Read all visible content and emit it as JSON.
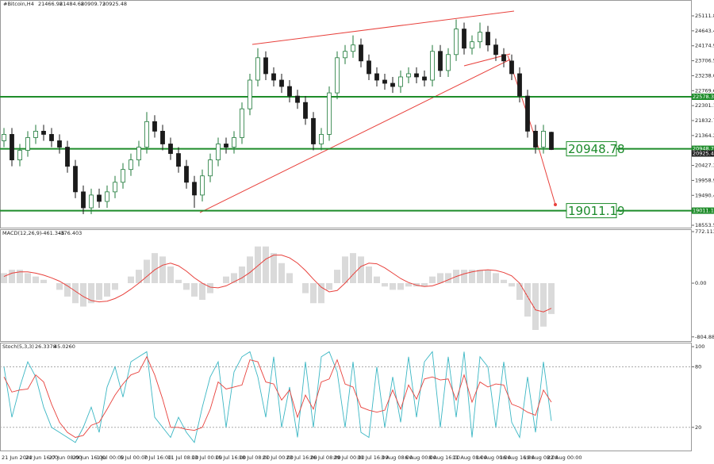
{
  "chart_data": [
    {
      "type": "candlestick",
      "symbol": "#Bitcoin,H4",
      "bull_color": "#1f7a3a",
      "bear_color": "#1a1a1a",
      "level_color": "#1e8c2a",
      "trend_color": "#e8413c",
      "open": [
        21200,
        21400,
        20600,
        20900,
        21300,
        21500,
        21400,
        21200,
        21000,
        20400,
        19600,
        19100,
        19500,
        19300,
        19600,
        19900,
        20300,
        20600,
        21000,
        21800,
        21500,
        21100,
        20800,
        20400,
        19900,
        19500,
        20100,
        20600,
        21100,
        21000,
        21300,
        22200,
        23100,
        23800,
        23300,
        23100,
        22900,
        22600,
        22400,
        21900,
        21100,
        21400,
        22700,
        23800,
        24000,
        24200,
        23700,
        23300,
        23100,
        23000,
        22900,
        23200,
        23300,
        23200,
        23100,
        24000,
        23400,
        23900,
        24700,
        24100,
        24300,
        24600,
        24200,
        23900,
        23700,
        23300,
        22600,
        21500,
        21000,
        21466.98
      ],
      "high": [
        21600,
        21600,
        21100,
        21500,
        21700,
        21700,
        21600,
        21400,
        21200,
        20600,
        19800,
        19700,
        19700,
        19800,
        20100,
        20500,
        20800,
        21200,
        22100,
        22000,
        21700,
        21300,
        21000,
        20600,
        20100,
        20300,
        20800,
        21300,
        21300,
        21500,
        22400,
        23300,
        24100,
        24000,
        23500,
        23300,
        23100,
        22800,
        22600,
        22100,
        21600,
        22900,
        24000,
        24200,
        24500,
        24400,
        23900,
        23500,
        23300,
        23200,
        23400,
        23500,
        23500,
        23400,
        24200,
        24200,
        24100,
        25000,
        24900,
        24500,
        24900,
        24800,
        24400,
        24100,
        23900,
        23500,
        22800,
        21700,
        21700,
        21484.68
      ],
      "low": [
        21000,
        20400,
        20400,
        20700,
        21100,
        21200,
        21000,
        20800,
        20200,
        19400,
        18900,
        18900,
        19100,
        19100,
        19400,
        19700,
        20100,
        20400,
        20800,
        21300,
        20900,
        20600,
        20200,
        19700,
        19100,
        19300,
        19900,
        20400,
        20800,
        20800,
        21100,
        22000,
        22900,
        23100,
        22900,
        22700,
        22400,
        22200,
        21700,
        20900,
        20900,
        21200,
        22500,
        23600,
        23800,
        23500,
        23100,
        22900,
        22800,
        22700,
        22700,
        23000,
        23000,
        22900,
        22900,
        23200,
        23200,
        23700,
        23900,
        23900,
        24100,
        24000,
        23700,
        23500,
        23100,
        22400,
        21300,
        20800,
        20800,
        20909.73
      ],
      "close": [
        21400,
        20600,
        20900,
        21300,
        21500,
        21400,
        21200,
        21000,
        20400,
        19600,
        19100,
        19500,
        19300,
        19600,
        19900,
        20300,
        20600,
        21000,
        21800,
        21500,
        21100,
        20800,
        20400,
        19900,
        19500,
        20100,
        20600,
        21100,
        21000,
        21300,
        22200,
        23100,
        23800,
        23300,
        23100,
        22900,
        22600,
        22400,
        21900,
        21100,
        21400,
        22700,
        23800,
        24000,
        24200,
        23700,
        23300,
        23100,
        23000,
        22900,
        23200,
        23300,
        23200,
        23100,
        24000,
        23400,
        23900,
        24700,
        24100,
        24300,
        24600,
        24200,
        23900,
        23700,
        23300,
        22600,
        21500,
        21000,
        21500,
        20925.48
      ],
      "ylim": [
        18479,
        25609
      ],
      "yticks": [
        25111.88,
        24643.43,
        24174.98,
        23706.53,
        23238.08,
        22769.63,
        22301.18,
        21832.73,
        21364.28,
        20895.83,
        20427.38,
        19958.93,
        19490.48,
        19022.03,
        18553.58
      ],
      "levels": [
        22578.33,
        20948.78,
        19011.19
      ],
      "callouts": [
        20948.78,
        19011.19
      ],
      "x_labels": [
        "21 Jun 2022",
        "24 Jun 16:00",
        "27 Jun 08:00",
        "29 Jun 16:00",
        "1 Jul 00:00",
        "5 Jul 00:00",
        "7 Jul 16:00",
        "11 Jul 08:00",
        "13 Jul 00:00",
        "15 Jul 16:00",
        "18 Jul 08:00",
        "21 Jul 00:00",
        "23 Jul 16:00",
        "26 Jul 08:00",
        "29 Jul 00:00",
        "31 Jul 16:00",
        "3 Aug 08:00",
        "6 Aug 00:00",
        "8 Aug 16:00",
        "11 Aug 08:00",
        "14 Aug 00:00",
        "16 Aug 16:00",
        "19 Aug 08:00",
        "22 Aug 00:00"
      ]
    },
    {
      "type": "macd",
      "title": "MACD(12,26,9)",
      "series": [
        {
          "name": "histogram",
          "color": "#b4b4b4",
          "values": [
            150,
            200,
            200,
            150,
            100,
            50,
            0,
            -100,
            -200,
            -300,
            -350,
            -300,
            -250,
            -200,
            -100,
            0,
            100,
            200,
            350,
            450,
            400,
            250,
            50,
            -100,
            -200,
            -250,
            -150,
            0,
            100,
            150,
            250,
            400,
            550,
            550,
            450,
            300,
            150,
            0,
            -150,
            -300,
            -300,
            -100,
            200,
            400,
            450,
            400,
            250,
            100,
            -50,
            -100,
            -100,
            -50,
            -50,
            -50,
            100,
            150,
            150,
            200,
            200,
            200,
            200,
            200,
            150,
            50,
            -50,
            -250,
            -500,
            -700,
            -650,
            -461.346
          ]
        },
        {
          "name": "signal",
          "color": "#e8413c",
          "values": [
            100,
            150,
            170,
            170,
            150,
            120,
            80,
            30,
            -40,
            -120,
            -200,
            -260,
            -280,
            -270,
            -230,
            -170,
            -90,
            0,
            100,
            200,
            270,
            300,
            260,
            180,
            80,
            0,
            -60,
            -70,
            -40,
            20,
            80,
            160,
            260,
            360,
            420,
            420,
            380,
            300,
            190,
            60,
            -60,
            -130,
            -110,
            0,
            130,
            250,
            300,
            290,
            230,
            150,
            70,
            10,
            -30,
            -50,
            -40,
            0,
            50,
            100,
            140,
            170,
            190,
            200,
            190,
            160,
            110,
            0,
            -200,
            -400,
            -430,
            -376.403
          ]
        }
      ],
      "ylim": [
        -867,
        808
      ],
      "yticks": [
        772.113,
        {
          "value": 0,
          "label": "0.00"
        },
        -804.881
      ]
    },
    {
      "type": "stochastic",
      "title": "Stoch(5,3,3)",
      "series": [
        {
          "name": "main",
          "color": "#3cb7c4",
          "values": [
            80,
            30,
            60,
            85,
            70,
            40,
            20,
            15,
            10,
            5,
            20,
            40,
            15,
            60,
            80,
            50,
            85,
            90,
            95,
            30,
            20,
            10,
            30,
            15,
            5,
            40,
            70,
            85,
            20,
            75,
            90,
            95,
            70,
            30,
            90,
            20,
            60,
            10,
            85,
            20,
            90,
            95,
            75,
            20,
            85,
            15,
            10,
            80,
            20,
            70,
            25,
            90,
            30,
            85,
            95,
            20,
            90,
            30,
            95,
            10,
            90,
            80,
            20,
            85,
            25,
            10,
            70,
            15,
            85,
            26.3378
          ]
        },
        {
          "name": "signal",
          "color": "#e8413c",
          "values": [
            70,
            55,
            57,
            58,
            72,
            65,
            43,
            25,
            15,
            10,
            12,
            22,
            25,
            38,
            52,
            63,
            72,
            75,
            90,
            72,
            48,
            20,
            20,
            18,
            17,
            20,
            38,
            65,
            58,
            60,
            62,
            87,
            85,
            65,
            63,
            47,
            57,
            30,
            52,
            38,
            65,
            68,
            87,
            63,
            60,
            40,
            37,
            35,
            37,
            57,
            38,
            62,
            48,
            68,
            70,
            67,
            68,
            47,
            72,
            45,
            65,
            60,
            63,
            62,
            43,
            40,
            35,
            32,
            57,
            45.026
          ]
        }
      ],
      "readout": [
        26.3378,
        {
          "value": 45.026,
          "label": "45.0260"
        }
      ],
      "ylim": [
        -3,
        104
      ],
      "yticks": [
        100,
        80,
        20
      ]
    }
  ]
}
